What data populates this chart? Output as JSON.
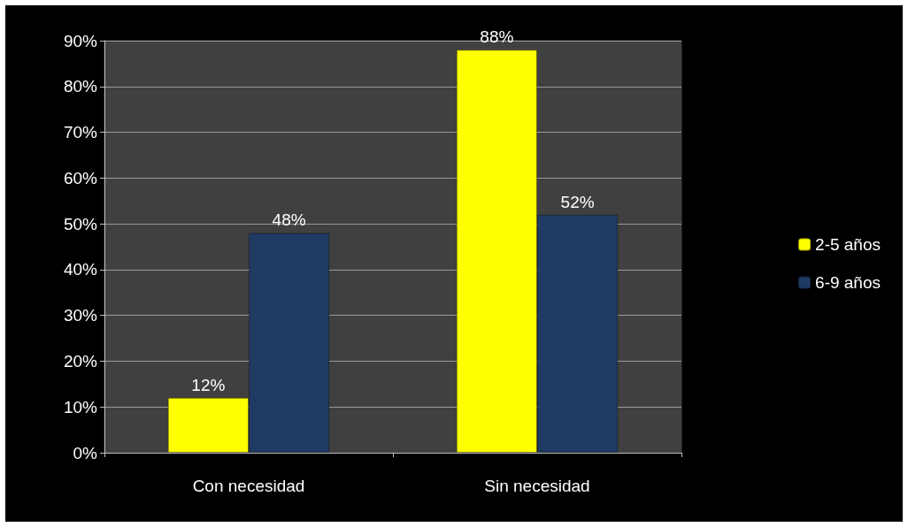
{
  "chart_data": {
    "type": "bar",
    "categories": [
      "Con necesidad",
      "Sin necesidad"
    ],
    "series": [
      {
        "name": "2-5 años",
        "color": "#ffff00",
        "values": [
          12,
          88
        ],
        "value_labels": [
          "12%",
          "88%"
        ]
      },
      {
        "name": "6-9 años",
        "color": "#1f3a63",
        "values": [
          48,
          52
        ],
        "value_labels": [
          "48%",
          "52%"
        ]
      }
    ],
    "ylim": [
      0,
      90
    ],
    "yticks": [
      {
        "value": 0,
        "label": "0%"
      },
      {
        "value": 10,
        "label": "10%"
      },
      {
        "value": 20,
        "label": "20%"
      },
      {
        "value": 30,
        "label": "30%"
      },
      {
        "value": 40,
        "label": "40%"
      },
      {
        "value": 50,
        "label": "50%"
      },
      {
        "value": 60,
        "label": "60%"
      },
      {
        "value": 70,
        "label": "70%"
      },
      {
        "value": 80,
        "label": "80%"
      },
      {
        "value": 90,
        "label": "90%"
      }
    ],
    "grid": true,
    "legend": "right"
  }
}
